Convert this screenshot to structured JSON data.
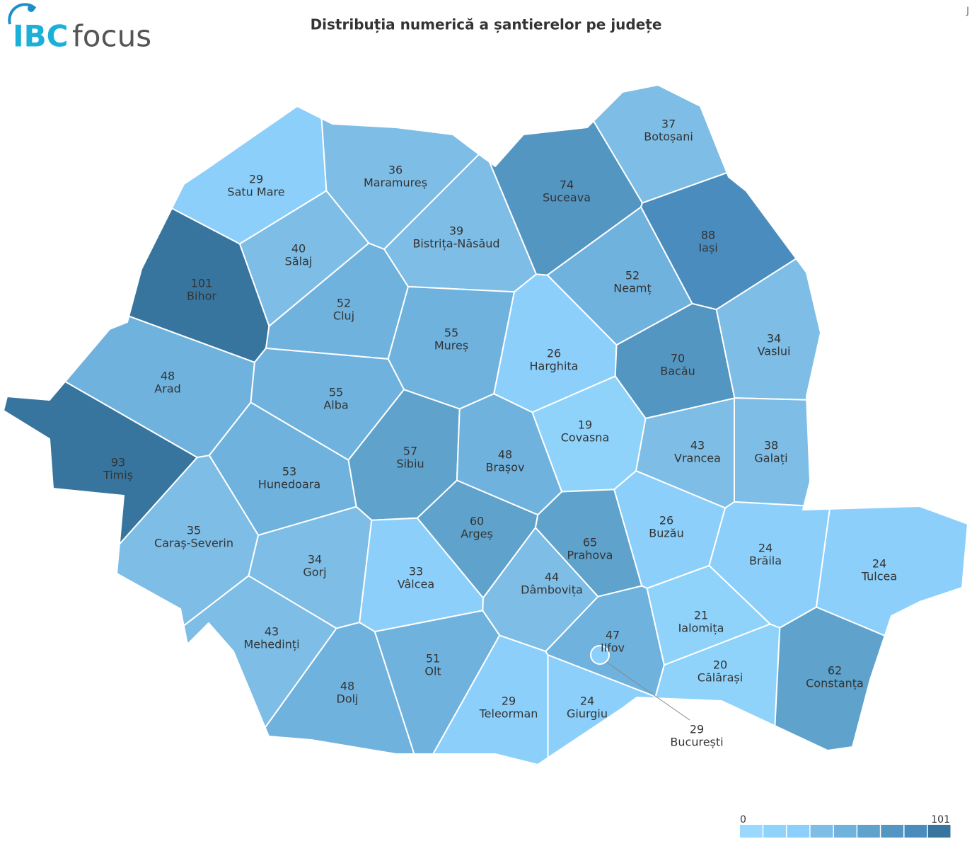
{
  "logo": {
    "brand": "IBC",
    "suffix": "focus"
  },
  "corner_mark": "J",
  "chart_data": {
    "type": "choropleth",
    "title": "Distribuția numerică a șantierelor pe județe",
    "regions": [
      {
        "name": "Satu Mare",
        "value": 29
      },
      {
        "name": "Maramureș",
        "value": 36
      },
      {
        "name": "Botoșani",
        "value": 37
      },
      {
        "name": "Suceava",
        "value": 74
      },
      {
        "name": "Iași",
        "value": 88
      },
      {
        "name": "Bistrița-Năsăud",
        "value": 39
      },
      {
        "name": "Sălaj",
        "value": 40
      },
      {
        "name": "Bihor",
        "value": 101
      },
      {
        "name": "Cluj",
        "value": 52
      },
      {
        "name": "Neamț",
        "value": 52
      },
      {
        "name": "Mureș",
        "value": 55
      },
      {
        "name": "Harghita",
        "value": 26
      },
      {
        "name": "Bacău",
        "value": 70
      },
      {
        "name": "Vaslui",
        "value": 34
      },
      {
        "name": "Arad",
        "value": 48
      },
      {
        "name": "Alba",
        "value": 55
      },
      {
        "name": "Hunedoara",
        "value": 53
      },
      {
        "name": "Timiș",
        "value": 93
      },
      {
        "name": "Sibiu",
        "value": 57
      },
      {
        "name": "Brașov",
        "value": 48
      },
      {
        "name": "Covasna",
        "value": 19
      },
      {
        "name": "Vrancea",
        "value": 43
      },
      {
        "name": "Galați",
        "value": 38
      },
      {
        "name": "Caraș-Severin",
        "value": 35
      },
      {
        "name": "Gorj",
        "value": 34
      },
      {
        "name": "Vâlcea",
        "value": 33
      },
      {
        "name": "Argeș",
        "value": 60
      },
      {
        "name": "Prahova",
        "value": 65
      },
      {
        "name": "Dâmbovița",
        "value": 44
      },
      {
        "name": "Buzău",
        "value": 26
      },
      {
        "name": "Brăila",
        "value": 24
      },
      {
        "name": "Tulcea",
        "value": 24
      },
      {
        "name": "Mehedinți",
        "value": 43
      },
      {
        "name": "Dolj",
        "value": 48
      },
      {
        "name": "Olt",
        "value": 51
      },
      {
        "name": "Teleorman",
        "value": 29
      },
      {
        "name": "Giurgiu",
        "value": 24
      },
      {
        "name": "Ilfov",
        "value": 47
      },
      {
        "name": "București",
        "value": 29
      },
      {
        "name": "Ialomița",
        "value": 21
      },
      {
        "name": "Călărași",
        "value": 20
      },
      {
        "name": "Constanța",
        "value": 62
      }
    ],
    "scale": [
      0,
      101
    ],
    "colors": [
      "#9ad9ff",
      "#8fd3fb",
      "#8ccffa",
      "#7dbde6",
      "#6fb2de",
      "#5fa2cc",
      "#5496c2",
      "#4a8cbd",
      "#37759e"
    ]
  }
}
